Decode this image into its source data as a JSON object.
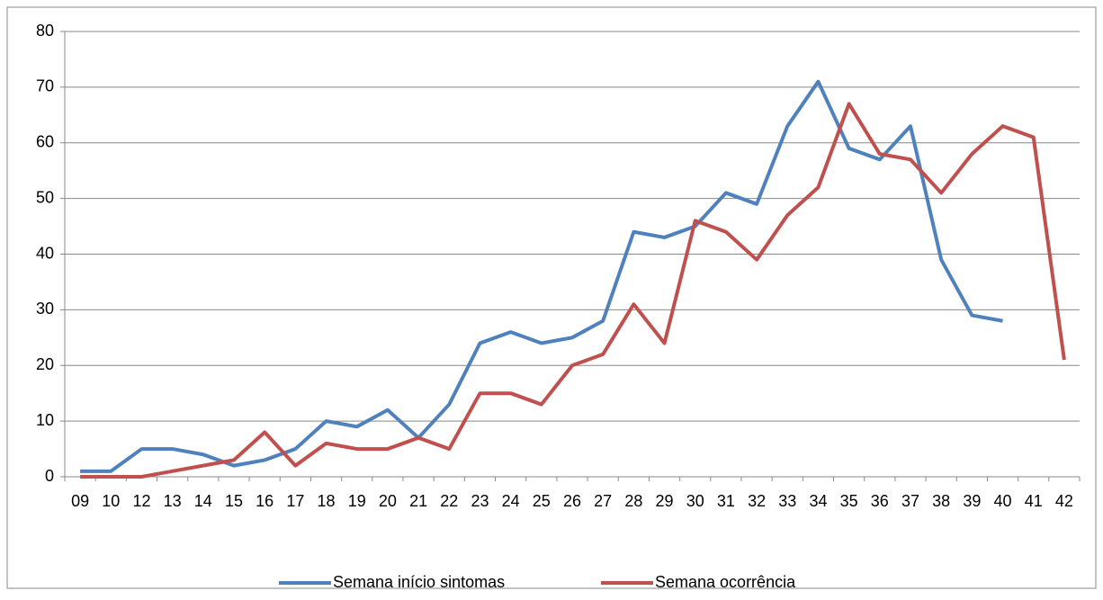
{
  "chart_data": {
    "type": "line",
    "categories": [
      "09",
      "10",
      "12",
      "13",
      "14",
      "15",
      "16",
      "17",
      "18",
      "19",
      "20",
      "21",
      "22",
      "23",
      "24",
      "25",
      "26",
      "27",
      "28",
      "29",
      "30",
      "31",
      "32",
      "33",
      "34",
      "35",
      "36",
      "37",
      "38",
      "39",
      "40",
      "41",
      "42"
    ],
    "series": [
      {
        "name": "Semana início sintomas",
        "color": "#4f81bd",
        "values": [
          1,
          1,
          5,
          5,
          4,
          2,
          3,
          5,
          10,
          9,
          12,
          7,
          13,
          24,
          26,
          24,
          25,
          28,
          44,
          43,
          45,
          51,
          49,
          63,
          71,
          59,
          57,
          63,
          39,
          29,
          28,
          null,
          null
        ]
      },
      {
        "name": "Semana ocorrência",
        "color": "#c0504d",
        "values": [
          0,
          0,
          0,
          1,
          2,
          3,
          8,
          2,
          6,
          5,
          5,
          7,
          5,
          15,
          15,
          13,
          20,
          22,
          31,
          24,
          46,
          44,
          39,
          47,
          52,
          67,
          58,
          57,
          51,
          58,
          63,
          61,
          21
        ]
      }
    ],
    "ylim": [
      0,
      80
    ],
    "yticks": [
      0,
      10,
      20,
      30,
      40,
      50,
      60,
      70,
      80
    ],
    "grid": true,
    "legend": "bottom"
  }
}
